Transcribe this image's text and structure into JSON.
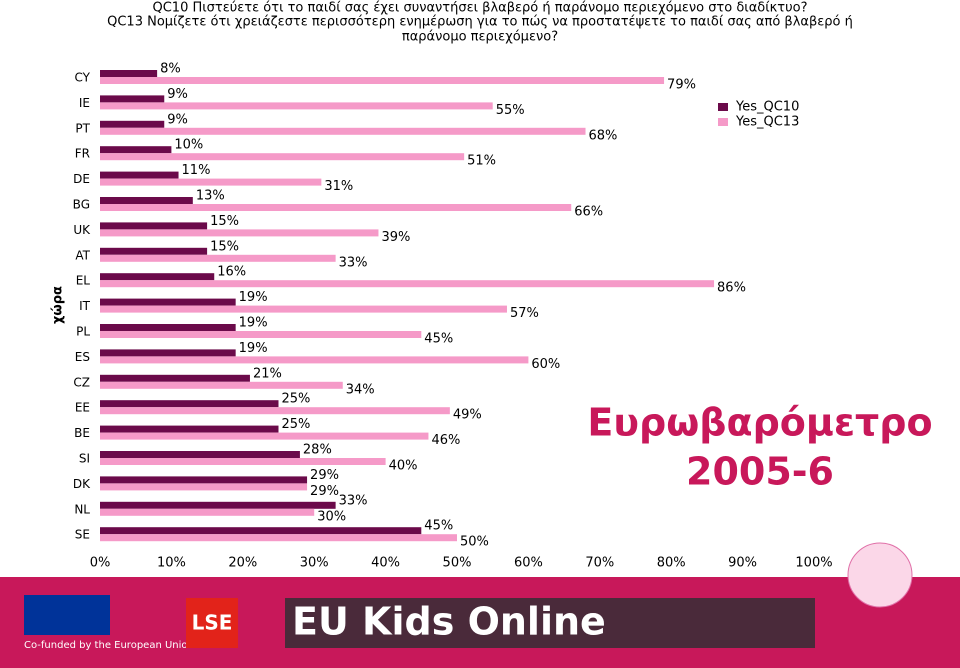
{
  "chart_data": {
    "type": "bar",
    "orientation": "horizontal",
    "title": [
      "QC10 Πιστεύετε ότι το παιδί σας έχει συναντήσει βλαβερό ή παράνομο περιεχόμενο στο διαδίκτυο?",
      "QC13 Νομίζετε ότι χρειάζεστε περισσότερη ενημέρωση για το πώς να προστατέψετε το παιδί σας από βλαβερό ή",
      "παράνομο περιεχόμενο?"
    ],
    "y_label": "χώρα",
    "categories": [
      "CY",
      "IE",
      "PT",
      "FR",
      "DE",
      "BG",
      "UK",
      "AT",
      "EL",
      "IT",
      "PL",
      "ES",
      "CZ",
      "EE",
      "BE",
      "SI",
      "DK",
      "NL",
      "SE"
    ],
    "series": [
      {
        "name": "Yes_QC10",
        "color": "#6b0a4a",
        "values": [
          8,
          9,
          9,
          10,
          11,
          13,
          15,
          15,
          16,
          19,
          19,
          19,
          21,
          25,
          25,
          28,
          29,
          33,
          45
        ],
        "value_labels": [
          "8%",
          "9%",
          "9%",
          "10%",
          "11%",
          "13%",
          "15%",
          "15%",
          "16%",
          "19%",
          "19%",
          "19%",
          "21%",
          "25%",
          "25%",
          "28%",
          "29%",
          "33%",
          "45%"
        ]
      },
      {
        "name": "Yes_QC13",
        "color": "#f59ac8",
        "values": [
          79,
          55,
          68,
          51,
          31,
          66,
          39,
          33,
          86,
          57,
          45,
          60,
          34,
          49,
          46,
          40,
          29,
          30,
          50
        ],
        "value_labels": [
          "79%",
          "55%",
          "68%",
          "51%",
          "31%",
          "66%",
          "39%",
          "33%",
          "86%",
          "57%",
          "45%",
          "60%",
          "34%",
          "49%",
          "46%",
          "40%",
          "29%",
          "30%",
          "50%"
        ]
      }
    ],
    "xlim": [
      0,
      100
    ],
    "xticks": [
      {
        "value": 0,
        "label": "0%"
      },
      {
        "value": 10,
        "label": "10%"
      },
      {
        "value": 20,
        "label": "20%"
      },
      {
        "value": 30,
        "label": "30%"
      },
      {
        "value": 40,
        "label": "40%"
      },
      {
        "value": 50,
        "label": "50%"
      },
      {
        "value": 60,
        "label": "60%"
      },
      {
        "value": 70,
        "label": "70%"
      },
      {
        "value": 80,
        "label": "80%"
      },
      {
        "value": 90,
        "label": "90%"
      },
      {
        "value": 100,
        "label": "100%"
      }
    ],
    "legend": "top-right",
    "annotation": [
      "Ευρωβαρόμετρο",
      "2005-6"
    ]
  },
  "footer": {
    "eu": "Co-funded by the European Union",
    "lse": "LSE",
    "brand": "EU Kids Online"
  }
}
